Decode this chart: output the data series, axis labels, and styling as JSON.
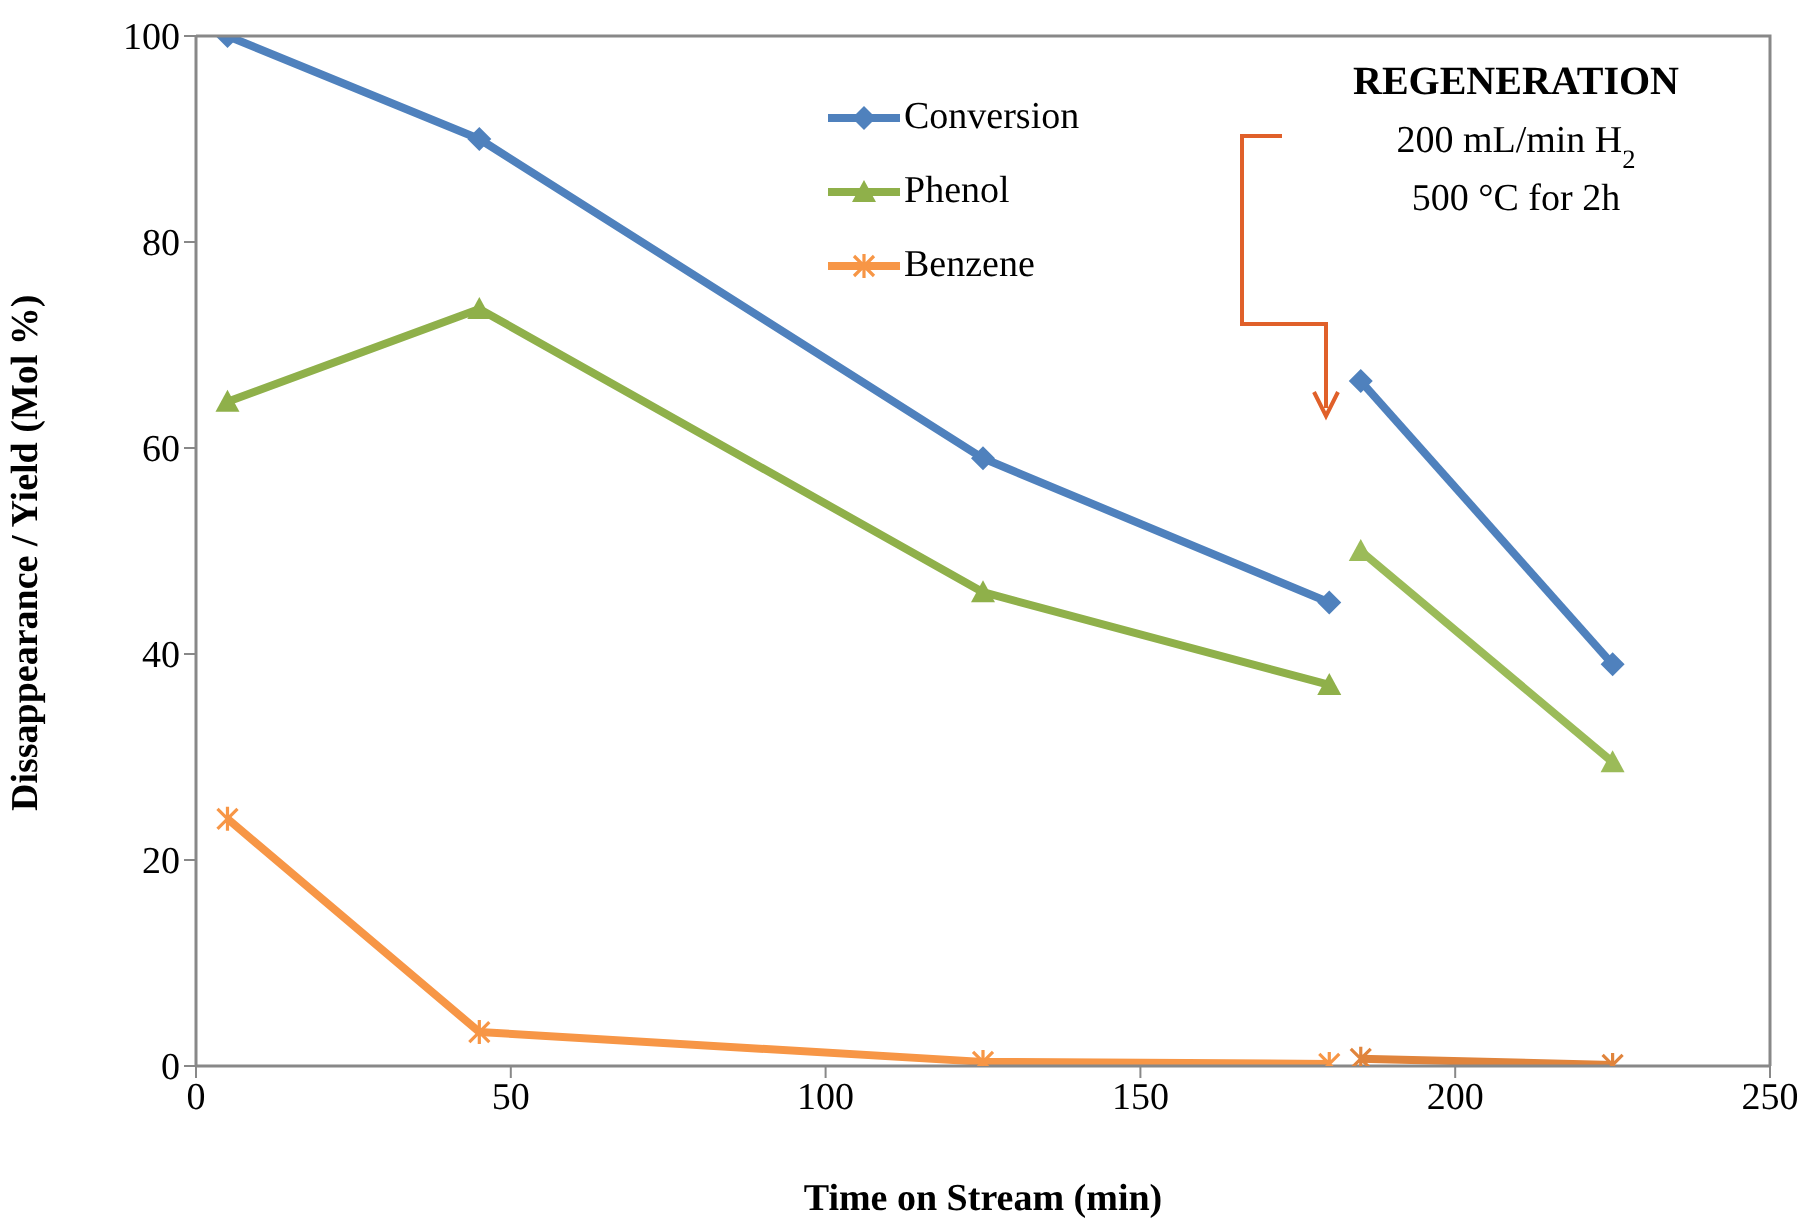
{
  "chart_data": {
    "type": "line",
    "xlabel": "Time on Stream (min)",
    "ylabel": "Dissappearance /  Yield (Mol %)",
    "xlim": [
      0,
      250
    ],
    "xticks": [
      0,
      50,
      100,
      150,
      200,
      250
    ],
    "ylim": [
      0,
      100
    ],
    "yticks": [
      0,
      20,
      40,
      60,
      80,
      100
    ],
    "grid": false,
    "legend": "top",
    "line_style": "solid",
    "series": [
      {
        "name": "Conversion",
        "color": "#4f81bd",
        "marker": "diamond",
        "x": [
          5,
          45,
          125,
          180
        ],
        "values": [
          100,
          90,
          59,
          45
        ]
      },
      {
        "name": "Phenol",
        "color": "#8fb04a",
        "marker": "triangle",
        "x": [
          5,
          45,
          125,
          180
        ],
        "values": [
          64.5,
          73.5,
          46,
          37
        ]
      },
      {
        "name": "Benzene",
        "color": "#f79646",
        "marker": "cross",
        "x": [
          5,
          45,
          125,
          180
        ],
        "values": [
          24,
          3.3,
          0.4,
          0.2
        ]
      },
      {
        "color": "#4f81bd",
        "marker": "diamond",
        "x": [
          185,
          225
        ],
        "values": [
          66.5,
          39
        ]
      },
      {
        "color": "#9bbb59",
        "marker": "triangle",
        "x": [
          185,
          225
        ],
        "values": [
          50,
          29.5
        ]
      },
      {
        "color": "#e0843c",
        "marker": "cross",
        "x": [
          185,
          225
        ],
        "values": [
          0.7,
          0.1
        ]
      }
    ],
    "annotations": [
      "REGENERATION",
      "200 mL/min H$_{2}$",
      "500 °C for 2h"
    ]
  }
}
